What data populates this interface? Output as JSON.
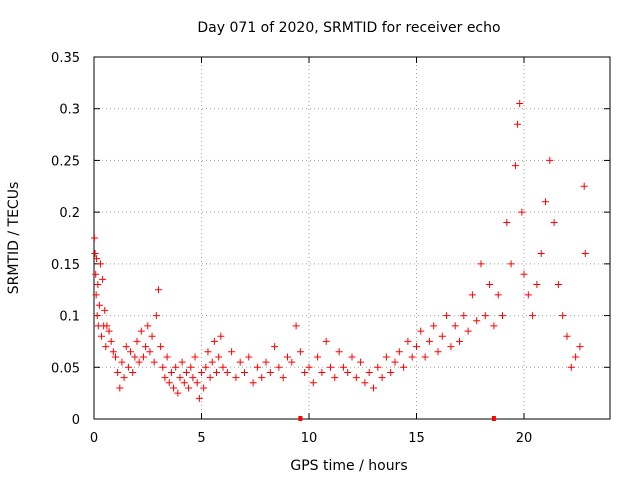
{
  "chart_data": {
    "type": "scatter",
    "title": "Day 071 of 2020, SRMTID for receiver echo",
    "xlabel": "GPS time / hours",
    "ylabel": "SRMTID / TECUs",
    "xlim": [
      0,
      24
    ],
    "ylim": [
      0,
      0.35
    ],
    "xticks": [
      0,
      5,
      10,
      15,
      20
    ],
    "xtick_labels": [
      "0",
      "5",
      "10",
      "15",
      "20"
    ],
    "yticks": [
      0,
      0.05,
      0.1,
      0.15,
      0.2,
      0.25,
      0.3,
      0.35
    ],
    "ytick_labels": [
      "0",
      "0.05",
      "0.1",
      "0.15",
      "0.2",
      "0.25",
      "0.3",
      "0.35"
    ],
    "grid": true,
    "marker": "+",
    "marker_color": "#ff0000",
    "baseline_markers_x": [
      9.6,
      18.6
    ],
    "series": [
      {
        "name": "SRMTID",
        "points": [
          [
            0.02,
            0.175
          ],
          [
            0.05,
            0.16
          ],
          [
            0.08,
            0.14
          ],
          [
            0.1,
            0.12
          ],
          [
            0.12,
            0.155
          ],
          [
            0.15,
            0.1
          ],
          [
            0.18,
            0.13
          ],
          [
            0.2,
            0.09
          ],
          [
            0.25,
            0.11
          ],
          [
            0.3,
            0.15
          ],
          [
            0.35,
            0.08
          ],
          [
            0.4,
            0.135
          ],
          [
            0.45,
            0.09
          ],
          [
            0.5,
            0.105
          ],
          [
            0.55,
            0.07
          ],
          [
            0.6,
            0.09
          ],
          [
            0.7,
            0.085
          ],
          [
            0.8,
            0.075
          ],
          [
            0.9,
            0.065
          ],
          [
            1.0,
            0.06
          ],
          [
            1.1,
            0.045
          ],
          [
            1.2,
            0.03
          ],
          [
            1.3,
            0.055
          ],
          [
            1.4,
            0.04
          ],
          [
            1.5,
            0.07
          ],
          [
            1.6,
            0.05
          ],
          [
            1.7,
            0.065
          ],
          [
            1.8,
            0.045
          ],
          [
            1.9,
            0.06
          ],
          [
            2.0,
            0.075
          ],
          [
            2.1,
            0.055
          ],
          [
            2.2,
            0.085
          ],
          [
            2.3,
            0.06
          ],
          [
            2.4,
            0.07
          ],
          [
            2.5,
            0.09
          ],
          [
            2.6,
            0.065
          ],
          [
            2.7,
            0.08
          ],
          [
            2.8,
            0.055
          ],
          [
            2.9,
            0.1
          ],
          [
            3.0,
            0.125
          ],
          [
            3.1,
            0.07
          ],
          [
            3.2,
            0.05
          ],
          [
            3.3,
            0.04
          ],
          [
            3.4,
            0.06
          ],
          [
            3.5,
            0.035
          ],
          [
            3.6,
            0.045
          ],
          [
            3.7,
            0.03
          ],
          [
            3.8,
            0.05
          ],
          [
            3.9,
            0.025
          ],
          [
            4.0,
            0.04
          ],
          [
            4.1,
            0.055
          ],
          [
            4.2,
            0.035
          ],
          [
            4.3,
            0.045
          ],
          [
            4.4,
            0.03
          ],
          [
            4.5,
            0.05
          ],
          [
            4.6,
            0.04
          ],
          [
            4.7,
            0.06
          ],
          [
            4.8,
            0.035
          ],
          [
            4.9,
            0.02
          ],
          [
            5.0,
            0.045
          ],
          [
            5.1,
            0.03
          ],
          [
            5.2,
            0.05
          ],
          [
            5.3,
            0.065
          ],
          [
            5.4,
            0.04
          ],
          [
            5.5,
            0.055
          ],
          [
            5.6,
            0.075
          ],
          [
            5.7,
            0.045
          ],
          [
            5.8,
            0.06
          ],
          [
            5.9,
            0.08
          ],
          [
            6.0,
            0.05
          ],
          [
            6.2,
            0.045
          ],
          [
            6.4,
            0.065
          ],
          [
            6.6,
            0.04
          ],
          [
            6.8,
            0.055
          ],
          [
            7.0,
            0.045
          ],
          [
            7.2,
            0.06
          ],
          [
            7.4,
            0.035
          ],
          [
            7.6,
            0.05
          ],
          [
            7.8,
            0.04
          ],
          [
            8.0,
            0.055
          ],
          [
            8.2,
            0.045
          ],
          [
            8.4,
            0.07
          ],
          [
            8.6,
            0.05
          ],
          [
            8.8,
            0.04
          ],
          [
            9.0,
            0.06
          ],
          [
            9.2,
            0.055
          ],
          [
            9.4,
            0.09
          ],
          [
            9.6,
            0.065
          ],
          [
            9.8,
            0.045
          ],
          [
            10.0,
            0.05
          ],
          [
            10.2,
            0.035
          ],
          [
            10.4,
            0.06
          ],
          [
            10.6,
            0.045
          ],
          [
            10.8,
            0.075
          ],
          [
            11.0,
            0.05
          ],
          [
            11.2,
            0.04
          ],
          [
            11.4,
            0.065
          ],
          [
            11.6,
            0.05
          ],
          [
            11.8,
            0.045
          ],
          [
            12.0,
            0.06
          ],
          [
            12.2,
            0.04
          ],
          [
            12.4,
            0.055
          ],
          [
            12.6,
            0.035
          ],
          [
            12.8,
            0.045
          ],
          [
            13.0,
            0.03
          ],
          [
            13.2,
            0.05
          ],
          [
            13.4,
            0.04
          ],
          [
            13.6,
            0.06
          ],
          [
            13.8,
            0.045
          ],
          [
            14.0,
            0.055
          ],
          [
            14.2,
            0.065
          ],
          [
            14.4,
            0.05
          ],
          [
            14.6,
            0.075
          ],
          [
            14.8,
            0.06
          ],
          [
            15.0,
            0.07
          ],
          [
            15.2,
            0.085
          ],
          [
            15.4,
            0.06
          ],
          [
            15.6,
            0.075
          ],
          [
            15.8,
            0.09
          ],
          [
            16.0,
            0.065
          ],
          [
            16.2,
            0.08
          ],
          [
            16.4,
            0.1
          ],
          [
            16.6,
            0.07
          ],
          [
            16.8,
            0.09
          ],
          [
            17.0,
            0.075
          ],
          [
            17.2,
            0.1
          ],
          [
            17.4,
            0.085
          ],
          [
            17.6,
            0.12
          ],
          [
            17.8,
            0.095
          ],
          [
            18.0,
            0.15
          ],
          [
            18.2,
            0.1
          ],
          [
            18.4,
            0.13
          ],
          [
            18.6,
            0.09
          ],
          [
            18.8,
            0.12
          ],
          [
            19.0,
            0.1
          ],
          [
            19.2,
            0.19
          ],
          [
            19.4,
            0.15
          ],
          [
            19.6,
            0.245
          ],
          [
            19.7,
            0.285
          ],
          [
            19.8,
            0.305
          ],
          [
            19.9,
            0.2
          ],
          [
            20.0,
            0.14
          ],
          [
            20.2,
            0.12
          ],
          [
            20.4,
            0.1
          ],
          [
            20.6,
            0.13
          ],
          [
            20.8,
            0.16
          ],
          [
            21.0,
            0.21
          ],
          [
            21.2,
            0.25
          ],
          [
            21.4,
            0.19
          ],
          [
            21.6,
            0.13
          ],
          [
            21.8,
            0.1
          ],
          [
            22.0,
            0.08
          ],
          [
            22.2,
            0.05
          ],
          [
            22.4,
            0.06
          ],
          [
            22.6,
            0.07
          ],
          [
            22.8,
            0.225
          ],
          [
            22.85,
            0.16
          ]
        ]
      }
    ]
  }
}
